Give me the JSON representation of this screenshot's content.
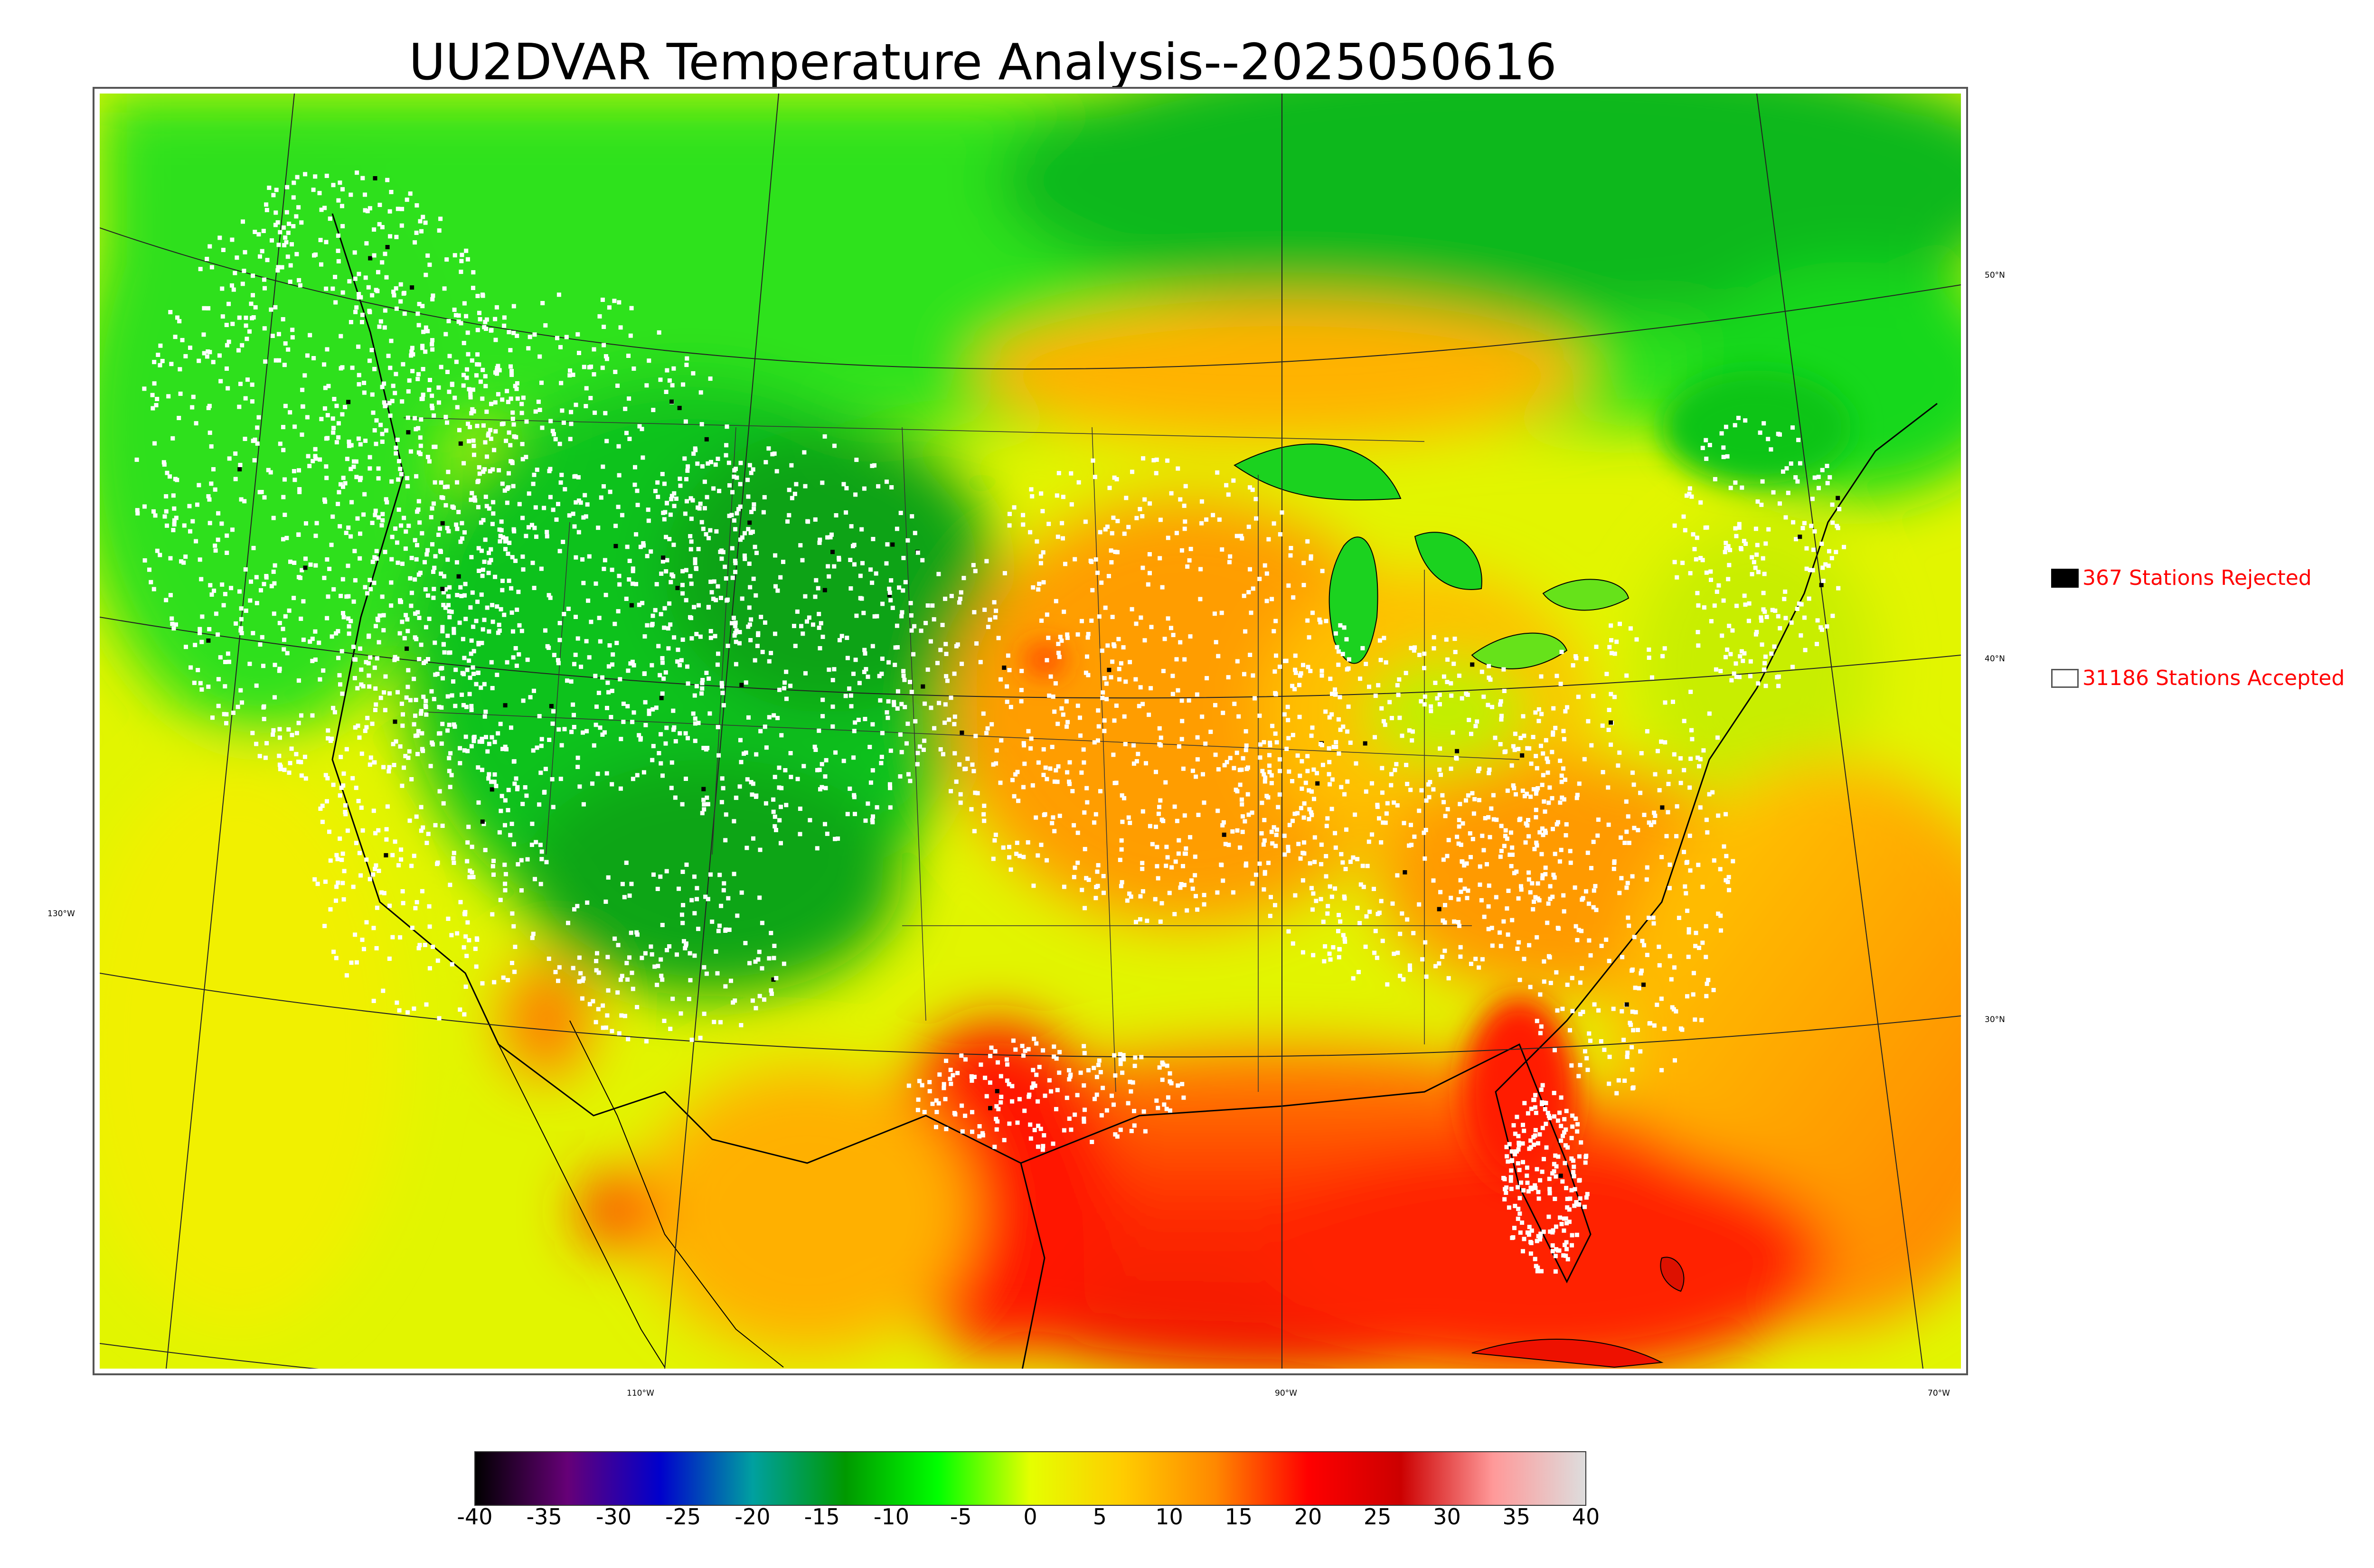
{
  "title": "UU2DVAR Temperature Analysis--2025050616",
  "legend": {
    "rejected": {
      "label": "367 Stations Rejected",
      "swatch": "#000000"
    },
    "accepted": {
      "label": "31186 Stations Accepted",
      "swatch": "#ffffff"
    }
  },
  "gridlines": {
    "latitudes": [
      "50°N",
      "40°N",
      "30°N"
    ],
    "longitudes": [
      "130°W",
      "110°W",
      "90°W",
      "70°W"
    ]
  },
  "colorbar": {
    "ticks": [
      "-40",
      "-35",
      "-30",
      "-25",
      "-20",
      "-15",
      "-10",
      "-5",
      "0",
      "5",
      "10",
      "15",
      "20",
      "25",
      "30",
      "35",
      "40"
    ],
    "range": [
      -40,
      40
    ],
    "colors": [
      "#000000",
      "#660077",
      "#0000cc",
      "#00a0a0",
      "#009900",
      "#00ff00",
      "#e5ff00",
      "#ffcc00",
      "#ff8800",
      "#ff0000",
      "#cc0000",
      "#ff9999",
      "#dddddd"
    ]
  },
  "colors": {
    "cold_region": "#11cc22",
    "warm_region": "#ff9900",
    "hot_region": "#ff1a00",
    "station_accepted": "#ffffff",
    "station_rejected": "#000000"
  }
}
